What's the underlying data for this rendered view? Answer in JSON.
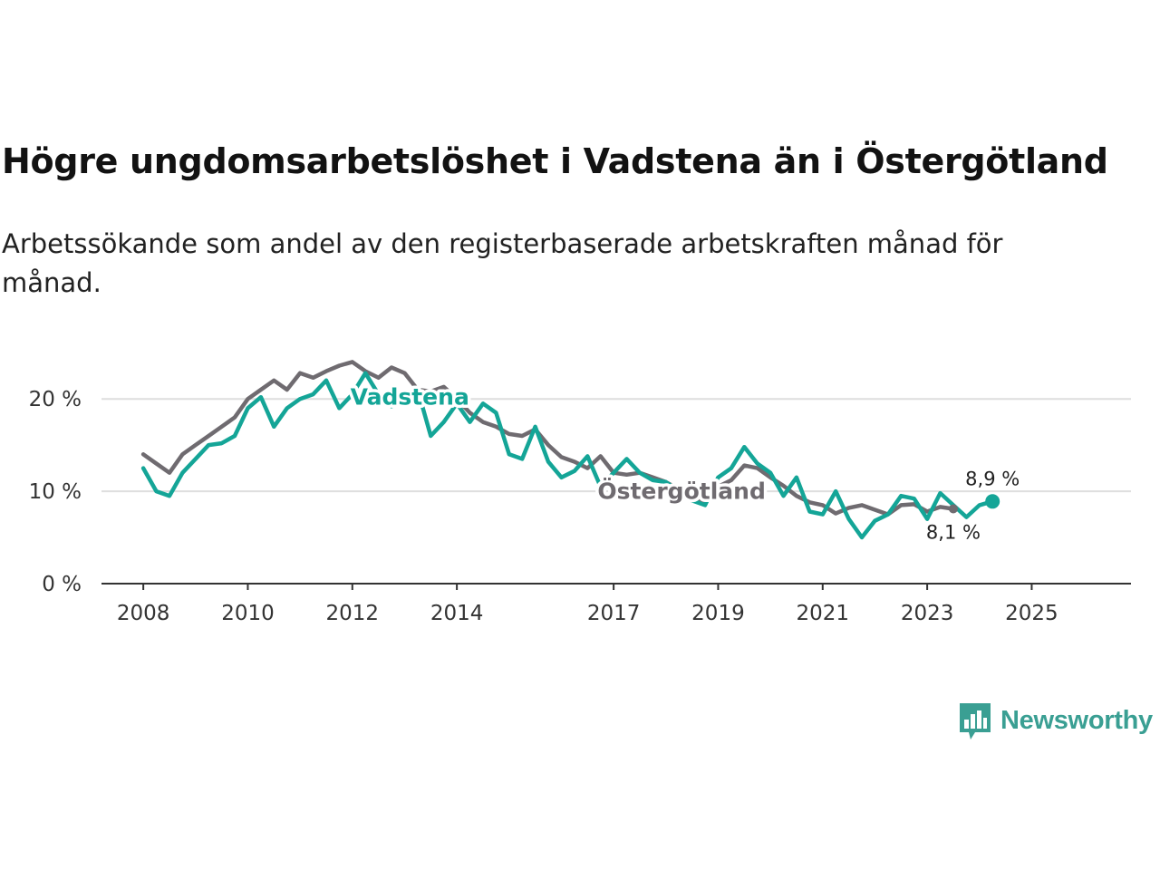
{
  "title": "Högre ungdomsarbetslöshet i Vadstena än i Östergötland",
  "subtitle": "Arbetssökande som andel av den registerbaserade arbetskraften månad för månad.",
  "brand": {
    "name": "Newsworthy",
    "icon": "newsworthy-logo-icon",
    "color": "#3a9f93"
  },
  "chart_data": {
    "type": "line",
    "title": "Högre ungdomsarbetslöshet i Vadstena än i Östergötland",
    "xlabel": "",
    "ylabel": "",
    "x_start": 2008.0,
    "x_step": 0.25,
    "xlim": [
      2007.2,
      2026.9
    ],
    "ylim": [
      0,
      21
    ],
    "y_ticks": [
      {
        "value": 0,
        "label": "0 %"
      },
      {
        "value": 10,
        "label": "10 %"
      },
      {
        "value": 20,
        "label": "20 %"
      }
    ],
    "x_ticks": [
      {
        "value": 2008,
        "label": "2008"
      },
      {
        "value": 2010,
        "label": "2010"
      },
      {
        "value": 2012,
        "label": "2012"
      },
      {
        "value": 2014,
        "label": "2014"
      },
      {
        "value": 2017,
        "label": "2017"
      },
      {
        "value": 2019,
        "label": "2019"
      },
      {
        "value": 2021,
        "label": "2021"
      },
      {
        "value": 2023,
        "label": "2023"
      },
      {
        "value": 2025,
        "label": "2025"
      }
    ],
    "series": [
      {
        "name": "Östergötland",
        "color": "#6f6b70",
        "values": [
          14,
          13,
          12,
          14,
          15,
          16,
          17,
          18,
          20,
          21,
          22,
          21,
          22.8,
          22.3,
          23,
          23.6,
          24,
          23,
          22.3,
          23.4,
          22.8,
          21,
          20.8,
          21.3,
          20,
          18.5,
          17.5,
          17,
          16.2,
          16,
          16.7,
          15,
          13.7,
          13.2,
          12.5,
          13.8,
          12,
          11.8,
          12,
          11.5,
          11,
          10.2,
          9.5,
          8.8,
          10.5,
          11.2,
          12.8,
          12.5,
          11.5,
          10.6,
          9.5,
          8.8,
          8.5,
          7.6,
          8.2,
          8.5,
          8,
          7.5,
          8.5,
          8.6,
          7.8,
          8.3,
          8.1
        ],
        "end_label": "8,1 %",
        "label_at": 2018.3
      },
      {
        "name": "Vadstena",
        "color": "#14a597",
        "values": [
          12.5,
          10,
          9.5,
          12,
          13.5,
          15,
          15.2,
          16,
          19,
          20.2,
          17,
          19,
          20,
          20.5,
          22,
          19,
          20.5,
          22.8,
          20.5,
          19.2,
          19.8,
          21,
          16,
          17.5,
          19.5,
          17.5,
          19.5,
          18.5,
          14,
          13.5,
          17,
          13.2,
          11.5,
          12.2,
          13.8,
          10.5,
          12,
          13.5,
          12,
          11.2,
          11,
          10,
          9,
          8.5,
          11.5,
          12.5,
          14.8,
          13,
          12,
          9.5,
          11.5,
          7.8,
          7.5,
          10,
          7,
          5,
          6.8,
          7.5,
          9.5,
          9.2,
          7,
          9.8,
          8.5,
          7.2,
          8.5,
          8.9
        ],
        "end_label": "8,9 %",
        "label_at": 2013.1
      }
    ]
  }
}
